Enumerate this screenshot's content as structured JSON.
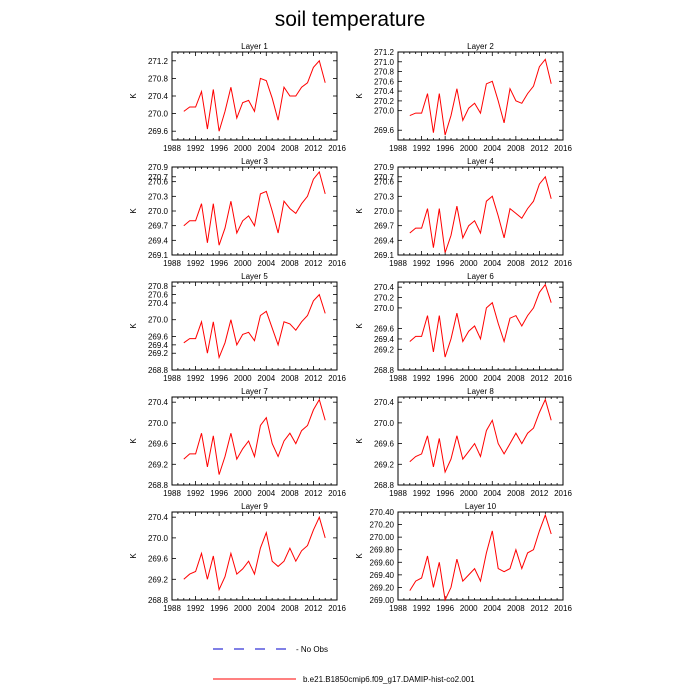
{
  "title": "soil temperature",
  "legend": {
    "obs_label": "- No Obs",
    "model_label": "b.e21.B1850cmip6.f09_g17.DAMIP-hist-co2.001",
    "model_color": "#ff0000",
    "obs_color": "#0000cc"
  },
  "chart_data": [
    {
      "type": "line",
      "title": "Layer 1",
      "ylabel": "K",
      "xlim": [
        1988,
        2016
      ],
      "x_ticks": [
        "1988",
        "1992",
        "1996",
        "2000",
        "2004",
        "2008",
        "2012",
        "2016"
      ],
      "ylim": [
        269.4,
        271.4
      ],
      "y_ticks": [
        "269.6",
        "270.0",
        "270.4",
        "270.8",
        "271.2"
      ],
      "x": [
        1990,
        1991,
        1992,
        1993,
        1994,
        1995,
        1996,
        1997,
        1998,
        1999,
        2000,
        2001,
        2002,
        2003,
        2004,
        2005,
        2006,
        2007,
        2008,
        2009,
        2010,
        2011,
        2012,
        2013,
        2014
      ],
      "series": [
        {
          "color": "#ff0000",
          "values": [
            270.05,
            270.15,
            270.15,
            270.5,
            269.65,
            270.55,
            269.6,
            270.05,
            270.6,
            269.9,
            270.25,
            270.3,
            270.05,
            270.8,
            270.75,
            270.35,
            269.85,
            270.6,
            270.4,
            270.4,
            270.6,
            270.7,
            271.05,
            271.2,
            270.7
          ]
        }
      ]
    },
    {
      "type": "line",
      "title": "Layer 2",
      "ylabel": "K",
      "xlim": [
        1988,
        2016
      ],
      "x_ticks": [
        "1988",
        "1992",
        "1996",
        "2000",
        "2004",
        "2008",
        "2012",
        "2016"
      ],
      "ylim": [
        269.4,
        271.2
      ],
      "y_ticks": [
        "269.6",
        "270.0",
        "270.2",
        "270.4",
        "270.6",
        "270.8",
        "271.0",
        "271.2"
      ],
      "x": [
        1990,
        1991,
        1992,
        1993,
        1994,
        1995,
        1996,
        1997,
        1998,
        1999,
        2000,
        2001,
        2002,
        2003,
        2004,
        2005,
        2006,
        2007,
        2008,
        2009,
        2010,
        2011,
        2012,
        2013,
        2014
      ],
      "series": [
        {
          "color": "#ff0000",
          "values": [
            269.9,
            269.95,
            269.95,
            270.35,
            269.55,
            270.35,
            269.5,
            269.9,
            270.45,
            269.8,
            270.05,
            270.15,
            269.95,
            270.55,
            270.6,
            270.2,
            269.75,
            270.45,
            270.2,
            270.15,
            270.35,
            270.5,
            270.9,
            271.05,
            270.55
          ]
        }
      ]
    },
    {
      "type": "line",
      "title": "Layer 3",
      "ylabel": "K",
      "xlim": [
        1988,
        2016
      ],
      "x_ticks": [
        "1988",
        "1992",
        "1996",
        "2000",
        "2004",
        "2008",
        "2012",
        "2016"
      ],
      "ylim": [
        269.1,
        270.9
      ],
      "y_ticks": [
        "269.1",
        "269.4",
        "269.7",
        "270.0",
        "270.3",
        "270.6",
        "270.7",
        "270.9"
      ],
      "x": [
        1990,
        1991,
        1992,
        1993,
        1994,
        1995,
        1996,
        1997,
        1998,
        1999,
        2000,
        2001,
        2002,
        2003,
        2004,
        2005,
        2006,
        2007,
        2008,
        2009,
        2010,
        2011,
        2012,
        2013,
        2014
      ],
      "series": [
        {
          "color": "#ff0000",
          "values": [
            269.7,
            269.8,
            269.8,
            270.15,
            269.35,
            270.15,
            269.3,
            269.65,
            270.2,
            269.55,
            269.8,
            269.9,
            269.7,
            270.35,
            270.4,
            270.0,
            269.55,
            270.2,
            270.05,
            269.95,
            270.15,
            270.3,
            270.65,
            270.8,
            270.35
          ]
        }
      ]
    },
    {
      "type": "line",
      "title": "Layer 4",
      "ylabel": "K",
      "xlim": [
        1988,
        2016
      ],
      "x_ticks": [
        "1988",
        "1992",
        "1996",
        "2000",
        "2004",
        "2008",
        "2012",
        "2016"
      ],
      "ylim": [
        269.1,
        270.9
      ],
      "y_ticks": [
        "269.1",
        "269.4",
        "269.7",
        "270.0",
        "270.3",
        "270.6",
        "270.7",
        "270.9"
      ],
      "x": [
        1990,
        1991,
        1992,
        1993,
        1994,
        1995,
        1996,
        1997,
        1998,
        1999,
        2000,
        2001,
        2002,
        2003,
        2004,
        2005,
        2006,
        2007,
        2008,
        2009,
        2010,
        2011,
        2012,
        2013,
        2014
      ],
      "series": [
        {
          "color": "#ff0000",
          "values": [
            269.55,
            269.65,
            269.65,
            270.05,
            269.25,
            270.05,
            269.15,
            269.5,
            270.1,
            269.45,
            269.7,
            269.8,
            269.55,
            270.2,
            270.3,
            269.9,
            269.45,
            270.05,
            269.95,
            269.85,
            270.05,
            270.2,
            270.55,
            270.7,
            270.25
          ]
        }
      ]
    },
    {
      "type": "line",
      "title": "Layer 5",
      "ylabel": "K",
      "xlim": [
        1988,
        2016
      ],
      "x_ticks": [
        "1988",
        "1992",
        "1996",
        "2000",
        "2004",
        "2008",
        "2012",
        "2016"
      ],
      "ylim": [
        268.8,
        270.9
      ],
      "y_ticks": [
        "268.8",
        "269.2",
        "269.4",
        "269.6",
        "270.0",
        "270.4",
        "270.6",
        "270.8"
      ],
      "x": [
        1990,
        1991,
        1992,
        1993,
        1994,
        1995,
        1996,
        1997,
        1998,
        1999,
        2000,
        2001,
        2002,
        2003,
        2004,
        2005,
        2006,
        2007,
        2008,
        2009,
        2010,
        2011,
        2012,
        2013,
        2014
      ],
      "series": [
        {
          "color": "#ff0000",
          "values": [
            269.45,
            269.55,
            269.55,
            269.95,
            269.2,
            269.95,
            269.1,
            269.45,
            270.0,
            269.4,
            269.65,
            269.7,
            269.5,
            270.1,
            270.2,
            269.8,
            269.4,
            269.95,
            269.9,
            269.75,
            269.95,
            270.1,
            270.45,
            270.6,
            270.15
          ]
        }
      ]
    },
    {
      "type": "line",
      "title": "Layer 6",
      "ylabel": "K",
      "xlim": [
        1988,
        2016
      ],
      "x_ticks": [
        "1988",
        "1992",
        "1996",
        "2000",
        "2004",
        "2008",
        "2012",
        "2016"
      ],
      "ylim": [
        268.8,
        270.5
      ],
      "y_ticks": [
        "268.8",
        "269.2",
        "269.4",
        "269.6",
        "270.0",
        "270.2",
        "270.4"
      ],
      "x": [
        1990,
        1991,
        1992,
        1993,
        1994,
        1995,
        1996,
        1997,
        1998,
        1999,
        2000,
        2001,
        2002,
        2003,
        2004,
        2005,
        2006,
        2007,
        2008,
        2009,
        2010,
        2011,
        2012,
        2013,
        2014
      ],
      "series": [
        {
          "color": "#ff0000",
          "values": [
            269.35,
            269.45,
            269.45,
            269.85,
            269.15,
            269.85,
            269.05,
            269.4,
            269.9,
            269.35,
            269.55,
            269.65,
            269.4,
            270.0,
            270.1,
            269.7,
            269.35,
            269.8,
            269.85,
            269.65,
            269.85,
            270.0,
            270.3,
            270.45,
            270.1
          ]
        }
      ]
    },
    {
      "type": "line",
      "title": "Layer 7",
      "ylabel": "K",
      "xlim": [
        1988,
        2016
      ],
      "x_ticks": [
        "1988",
        "1992",
        "1996",
        "2000",
        "2004",
        "2008",
        "2012",
        "2016"
      ],
      "ylim": [
        268.8,
        270.5
      ],
      "y_ticks": [
        "268.8",
        "269.2",
        "269.6",
        "270.0",
        "270.4"
      ],
      "x": [
        1990,
        1991,
        1992,
        1993,
        1994,
        1995,
        1996,
        1997,
        1998,
        1999,
        2000,
        2001,
        2002,
        2003,
        2004,
        2005,
        2006,
        2007,
        2008,
        2009,
        2010,
        2011,
        2012,
        2013,
        2014
      ],
      "series": [
        {
          "color": "#ff0000",
          "values": [
            269.3,
            269.4,
            269.4,
            269.8,
            269.15,
            269.75,
            269.0,
            269.35,
            269.8,
            269.3,
            269.5,
            269.65,
            269.35,
            269.95,
            270.1,
            269.6,
            269.35,
            269.65,
            269.8,
            269.6,
            269.85,
            269.95,
            270.25,
            270.45,
            270.05
          ]
        }
      ]
    },
    {
      "type": "line",
      "title": "Layer 8",
      "ylabel": "K",
      "xlim": [
        1988,
        2016
      ],
      "x_ticks": [
        "1988",
        "1992",
        "1996",
        "2000",
        "2004",
        "2008",
        "2012",
        "2016"
      ],
      "ylim": [
        268.8,
        270.5
      ],
      "y_ticks": [
        "268.8",
        "269.2",
        "269.6",
        "270.0",
        "270.4"
      ],
      "x": [
        1990,
        1991,
        1992,
        1993,
        1994,
        1995,
        1996,
        1997,
        1998,
        1999,
        2000,
        2001,
        2002,
        2003,
        2004,
        2005,
        2006,
        2007,
        2008,
        2009,
        2010,
        2011,
        2012,
        2013,
        2014
      ],
      "series": [
        {
          "color": "#ff0000",
          "values": [
            269.25,
            269.35,
            269.4,
            269.75,
            269.15,
            269.7,
            269.05,
            269.3,
            269.75,
            269.3,
            269.45,
            269.6,
            269.35,
            269.85,
            270.05,
            269.6,
            269.4,
            269.6,
            269.8,
            269.6,
            269.8,
            269.9,
            270.2,
            270.45,
            270.05
          ]
        }
      ]
    },
    {
      "type": "line",
      "title": "Layer 9",
      "ylabel": "K",
      "xlim": [
        1988,
        2016
      ],
      "x_ticks": [
        "1988",
        "1992",
        "1996",
        "2000",
        "2004",
        "2008",
        "2012",
        "2016"
      ],
      "ylim": [
        268.8,
        270.5
      ],
      "y_ticks": [
        "268.8",
        "269.2",
        "269.6",
        "270.0",
        "270.4"
      ],
      "x": [
        1990,
        1991,
        1992,
        1993,
        1994,
        1995,
        1996,
        1997,
        1998,
        1999,
        2000,
        2001,
        2002,
        2003,
        2004,
        2005,
        2006,
        2007,
        2008,
        2009,
        2010,
        2011,
        2012,
        2013,
        2014
      ],
      "series": [
        {
          "color": "#ff0000",
          "values": [
            269.2,
            269.3,
            269.35,
            269.7,
            269.2,
            269.65,
            269.0,
            269.25,
            269.7,
            269.3,
            269.4,
            269.55,
            269.3,
            269.8,
            270.1,
            269.55,
            269.45,
            269.55,
            269.8,
            269.55,
            269.75,
            269.85,
            270.15,
            270.4,
            270.0
          ]
        }
      ]
    },
    {
      "type": "line",
      "title": "Layer 10",
      "ylabel": "K",
      "xlim": [
        1988,
        2016
      ],
      "x_ticks": [
        "1988",
        "1992",
        "1996",
        "2000",
        "2004",
        "2008",
        "2012",
        "2016"
      ],
      "ylim": [
        269.0,
        270.4
      ],
      "y_ticks": [
        "269.00",
        "269.20",
        "269.40",
        "269.60",
        "269.80",
        "270.00",
        "270.20",
        "270.40"
      ],
      "x": [
        1990,
        1991,
        1992,
        1993,
        1994,
        1995,
        1996,
        1997,
        1998,
        1999,
        2000,
        2001,
        2002,
        2003,
        2004,
        2005,
        2006,
        2007,
        2008,
        2009,
        2010,
        2011,
        2012,
        2013,
        2014
      ],
      "series": [
        {
          "color": "#ff0000",
          "values": [
            269.15,
            269.3,
            269.35,
            269.7,
            269.2,
            269.6,
            269.0,
            269.2,
            269.65,
            269.3,
            269.4,
            269.5,
            269.3,
            269.75,
            270.1,
            269.5,
            269.45,
            269.5,
            269.8,
            269.5,
            269.75,
            269.8,
            270.1,
            270.35,
            270.05
          ]
        }
      ]
    }
  ]
}
